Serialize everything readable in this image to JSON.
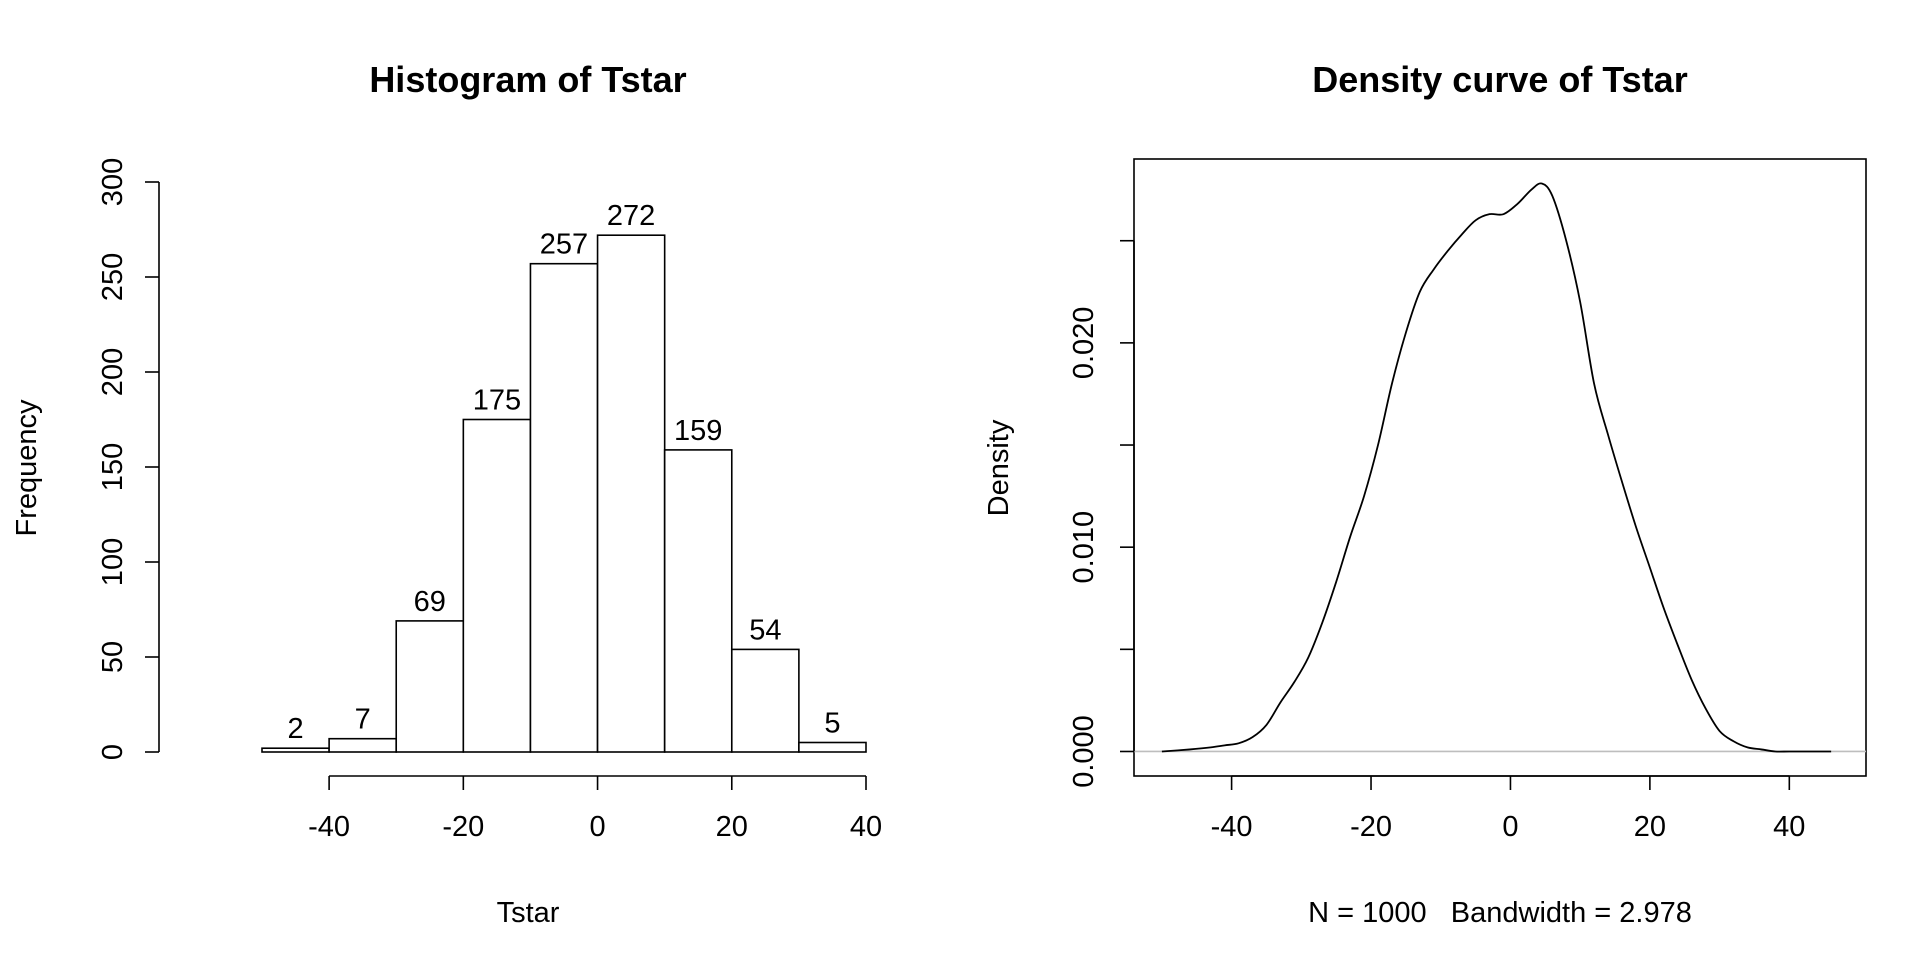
{
  "chart_data": [
    {
      "type": "bar",
      "title": "Histogram of Tstar",
      "xlabel": "Tstar",
      "ylabel": "Frequency",
      "bin_edges": [
        -50,
        -40,
        -30,
        -20,
        -10,
        0,
        10,
        20,
        30,
        40
      ],
      "values": [
        2,
        7,
        69,
        175,
        257,
        272,
        159,
        54,
        5
      ],
      "xticks": [
        -40,
        -20,
        0,
        20,
        40
      ],
      "yticks": [
        0,
        50,
        100,
        150,
        200,
        250,
        300
      ],
      "xlim": [
        -50,
        40
      ],
      "ylim": [
        0,
        300
      ],
      "data_labels": true
    },
    {
      "type": "line",
      "title": "Density curve of Tstar",
      "xlabel": "N = 1000   Bandwidth = 2.978",
      "ylabel": "Density",
      "xticks": [
        -40,
        -20,
        0,
        20,
        40
      ],
      "yticks": [
        "0.000",
        "0.010",
        "0.020"
      ],
      "yticks_minor": [
        0.005,
        0.015,
        0.025
      ],
      "xlim": [
        -54,
        51
      ],
      "ylim": [
        -0.0012,
        0.029
      ],
      "x": [
        -50,
        -46,
        -43,
        -41,
        -39,
        -37,
        -35,
        -33,
        -31,
        -29,
        -27,
        -25,
        -23,
        -21,
        -19,
        -17,
        -15,
        -13,
        -11,
        -9,
        -7,
        -5,
        -3,
        -1,
        1,
        3,
        4.5,
        6,
        8,
        10,
        12,
        14,
        16,
        18,
        20,
        22,
        24,
        26,
        28,
        30,
        32,
        34,
        36,
        38,
        40,
        43,
        46
      ],
      "y": [
        0.0,
        0.0001,
        0.0002,
        0.0003,
        0.0004,
        0.0007,
        0.0013,
        0.0024,
        0.0034,
        0.0046,
        0.0063,
        0.0083,
        0.0105,
        0.0125,
        0.015,
        0.018,
        0.0205,
        0.0225,
        0.0236,
        0.0245,
        0.0253,
        0.026,
        0.0263,
        0.0263,
        0.0268,
        0.0275,
        0.0278,
        0.0272,
        0.025,
        0.022,
        0.018,
        0.0155,
        0.0132,
        0.011,
        0.009,
        0.007,
        0.0052,
        0.0035,
        0.0021,
        0.001,
        0.0005,
        0.0002,
        0.0001,
        0.0,
        0.0,
        0.0,
        0.0
      ]
    }
  ]
}
